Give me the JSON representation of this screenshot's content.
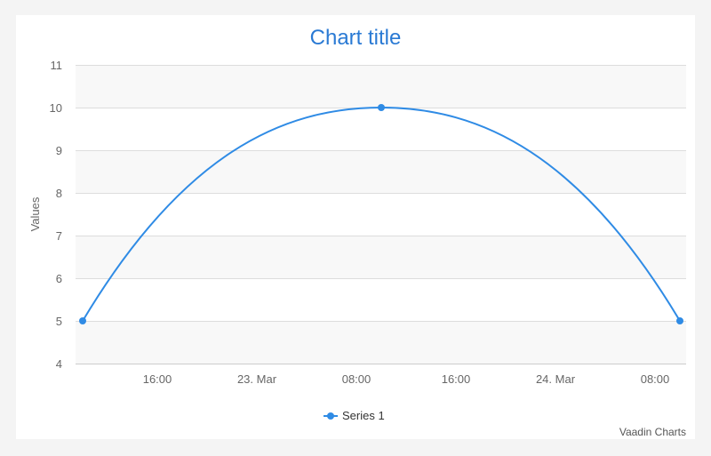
{
  "chart_data": {
    "type": "line",
    "title": "Chart title",
    "ylabel": "Values",
    "xlabel": "",
    "ylim": [
      4,
      11
    ],
    "y_ticks": [
      "4",
      "5",
      "6",
      "7",
      "8",
      "9",
      "10",
      "11"
    ],
    "x_ticks": [
      {
        "label": "16:00",
        "t": "2014-03-22T16:00"
      },
      {
        "label": "23. Mar",
        "t": "2014-03-23T00:00"
      },
      {
        "label": "08:00",
        "t": "2014-03-23T08:00"
      },
      {
        "label": "16:00",
        "t": "2014-03-23T16:00"
      },
      {
        "label": "24. Mar",
        "t": "2014-03-24T00:00"
      },
      {
        "label": "08:00",
        "t": "2014-03-24T08:00"
      }
    ],
    "series": [
      {
        "name": "Series 1",
        "color": "#2f8be5",
        "points": [
          {
            "x": "2014-03-22T10:00",
            "y": 5
          },
          {
            "x": "2014-03-23T10:00",
            "y": 10
          },
          {
            "x": "2014-03-24T10:00",
            "y": 5
          }
        ]
      }
    ],
    "legend": "bottom-center",
    "grid": true,
    "credits": "Vaadin Charts",
    "colors": {
      "title": "#2a7ad4",
      "band": "#f8f8f8",
      "grid": "#dddddd",
      "axis_text": "#666666"
    }
  }
}
